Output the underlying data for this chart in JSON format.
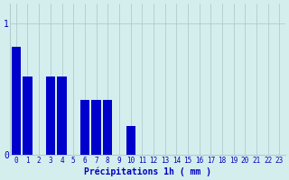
{
  "categories": [
    0,
    1,
    2,
    3,
    4,
    5,
    6,
    7,
    8,
    9,
    10,
    11,
    12,
    13,
    14,
    15,
    16,
    17,
    18,
    19,
    20,
    21,
    22,
    23
  ],
  "values": [
    0.82,
    0.6,
    0.0,
    0.6,
    0.6,
    0.0,
    0.42,
    0.42,
    0.42,
    0.0,
    0.22,
    0.0,
    0.0,
    0.0,
    0.0,
    0.0,
    0.0,
    0.0,
    0.0,
    0.0,
    0.0,
    0.0,
    0.0,
    0.0
  ],
  "bar_color": "#0000cc",
  "background_color": "#d4eeee",
  "grid_color": "#b0cccc",
  "text_color": "#0000bb",
  "xlabel": "Précipitations 1h ( mm )",
  "ylim": [
    0,
    1.15
  ],
  "yticks": [
    0,
    1
  ],
  "ytick_labels": [
    "0",
    "1"
  ],
  "xlim": [
    -0.5,
    23.5
  ],
  "bar_width": 0.8
}
